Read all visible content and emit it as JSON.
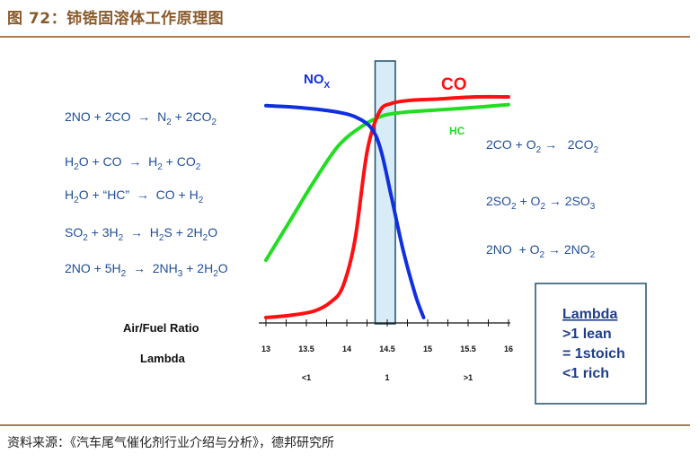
{
  "title": "图 72：铈锆固溶体工作原理图",
  "source": "资料来源：《汽车尾气催化剂行业介绍与分析》，德邦研究所",
  "colors": {
    "title": "#8a5a2b",
    "rule": "#b07b4a",
    "equation": "#1f4e9a",
    "nox": "#1030e0",
    "co": "#ff1010",
    "hc": "#22dd22",
    "window_fill": "#d8ecf8",
    "window_stroke": "#1f4e6a"
  },
  "chart_data": {
    "type": "line",
    "xlabel": "Air/Fuel Ratio",
    "x2label": "Lambda",
    "x_ticks": [
      "13",
      "13.5",
      "14",
      "14.5",
      "15",
      "15.5",
      "16"
    ],
    "lambda_ticks": [
      {
        "x": 13.5,
        "label": "<1"
      },
      {
        "x": 14.5,
        "label": "1"
      },
      {
        "x": 15.5,
        "label": ">1"
      }
    ],
    "xlim": [
      13,
      16
    ],
    "ylim": [
      0,
      100
    ],
    "stoich_window": [
      14.35,
      14.6
    ],
    "series": [
      {
        "name": "NOx",
        "label_main": "NO",
        "label_sub": "X",
        "color": "#1030e0",
        "x": [
          13.0,
          13.3,
          13.6,
          13.9,
          14.1,
          14.3,
          14.42,
          14.55,
          14.7,
          14.85,
          14.95
        ],
        "y": [
          96,
          95.5,
          94.5,
          93,
          91,
          86,
          76,
          55,
          30,
          10,
          0
        ]
      },
      {
        "name": "CO",
        "label_main": "CO",
        "color": "#ff1010",
        "x": [
          13.0,
          13.3,
          13.6,
          13.8,
          13.95,
          14.1,
          14.25,
          14.4,
          14.55,
          14.8,
          15.1,
          15.6,
          16.0
        ],
        "y": [
          0,
          1,
          3,
          7,
          14,
          35,
          75,
          93,
          97,
          98.5,
          99,
          100,
          100
        ]
      },
      {
        "name": "HC",
        "label_main": "HC",
        "color": "#22dd22",
        "x": [
          13.0,
          13.3,
          13.6,
          13.9,
          14.2,
          14.45,
          14.7,
          15.0,
          15.5,
          16.0
        ],
        "y": [
          26,
          44,
          62,
          78,
          87,
          91.5,
          93,
          93.8,
          95,
          96.5
        ]
      }
    ]
  },
  "left_equations": [
    {
      "parts": [
        [
          "2NO + 2CO",
          ""
        ],
        [
          "  →  ",
          ""
        ],
        [
          "N",
          ""
        ],
        [
          "2",
          "sub"
        ],
        [
          " + 2CO",
          ""
        ],
        [
          "2",
          "sub"
        ]
      ]
    },
    {
      "parts": [
        [
          "H",
          ""
        ],
        [
          "2",
          "sub"
        ],
        [
          "O + CO",
          ""
        ],
        [
          "  →  ",
          ""
        ],
        [
          "H",
          ""
        ],
        [
          "2",
          "sub"
        ],
        [
          " + CO",
          ""
        ],
        [
          "2",
          "sub"
        ]
      ]
    },
    {
      "parts": [
        [
          "H",
          ""
        ],
        [
          "2",
          "sub"
        ],
        [
          "O + “HC”",
          ""
        ],
        [
          "  →  ",
          ""
        ],
        [
          "CO + H",
          ""
        ],
        [
          "2",
          "sub"
        ]
      ]
    },
    {
      "parts": [
        [
          "SO",
          ""
        ],
        [
          "2",
          "sub"
        ],
        [
          " + 3H",
          ""
        ],
        [
          "2",
          "sub"
        ],
        [
          "  →  ",
          ""
        ],
        [
          "H",
          ""
        ],
        [
          "2",
          "sub"
        ],
        [
          "S + 2H",
          ""
        ],
        [
          "2",
          "sub"
        ],
        [
          "O",
          ""
        ]
      ]
    },
    {
      "parts": [
        [
          "2NO + 5H",
          ""
        ],
        [
          "2",
          "sub"
        ],
        [
          "  →  ",
          ""
        ],
        [
          "2NH",
          ""
        ],
        [
          "3",
          "sub"
        ],
        [
          " + 2H",
          ""
        ],
        [
          "2",
          "sub"
        ],
        [
          "O",
          ""
        ]
      ]
    }
  ],
  "right_equations": [
    {
      "parts": [
        [
          "2CO + O",
          ""
        ],
        [
          "2",
          "sub"
        ],
        [
          " → ",
          ""
        ],
        [
          "  2CO",
          ""
        ],
        [
          "2",
          "sub"
        ]
      ]
    },
    {
      "parts": [
        [
          "2SO",
          ""
        ],
        [
          "2",
          "sub"
        ],
        [
          " + O",
          ""
        ],
        [
          "2",
          "sub"
        ],
        [
          " → ",
          ""
        ],
        [
          "2SO",
          ""
        ],
        [
          "3",
          "sub"
        ]
      ]
    },
    {
      "parts": [
        [
          "2NO  + O",
          ""
        ],
        [
          "2",
          "sub"
        ],
        [
          " → ",
          ""
        ],
        [
          "2NO",
          ""
        ],
        [
          "2",
          "sub"
        ]
      ]
    }
  ],
  "lambda_box": {
    "heading": "Lambda",
    "lines": [
      ">1 lean",
      "= 1stoich",
      "<1 rich"
    ]
  }
}
